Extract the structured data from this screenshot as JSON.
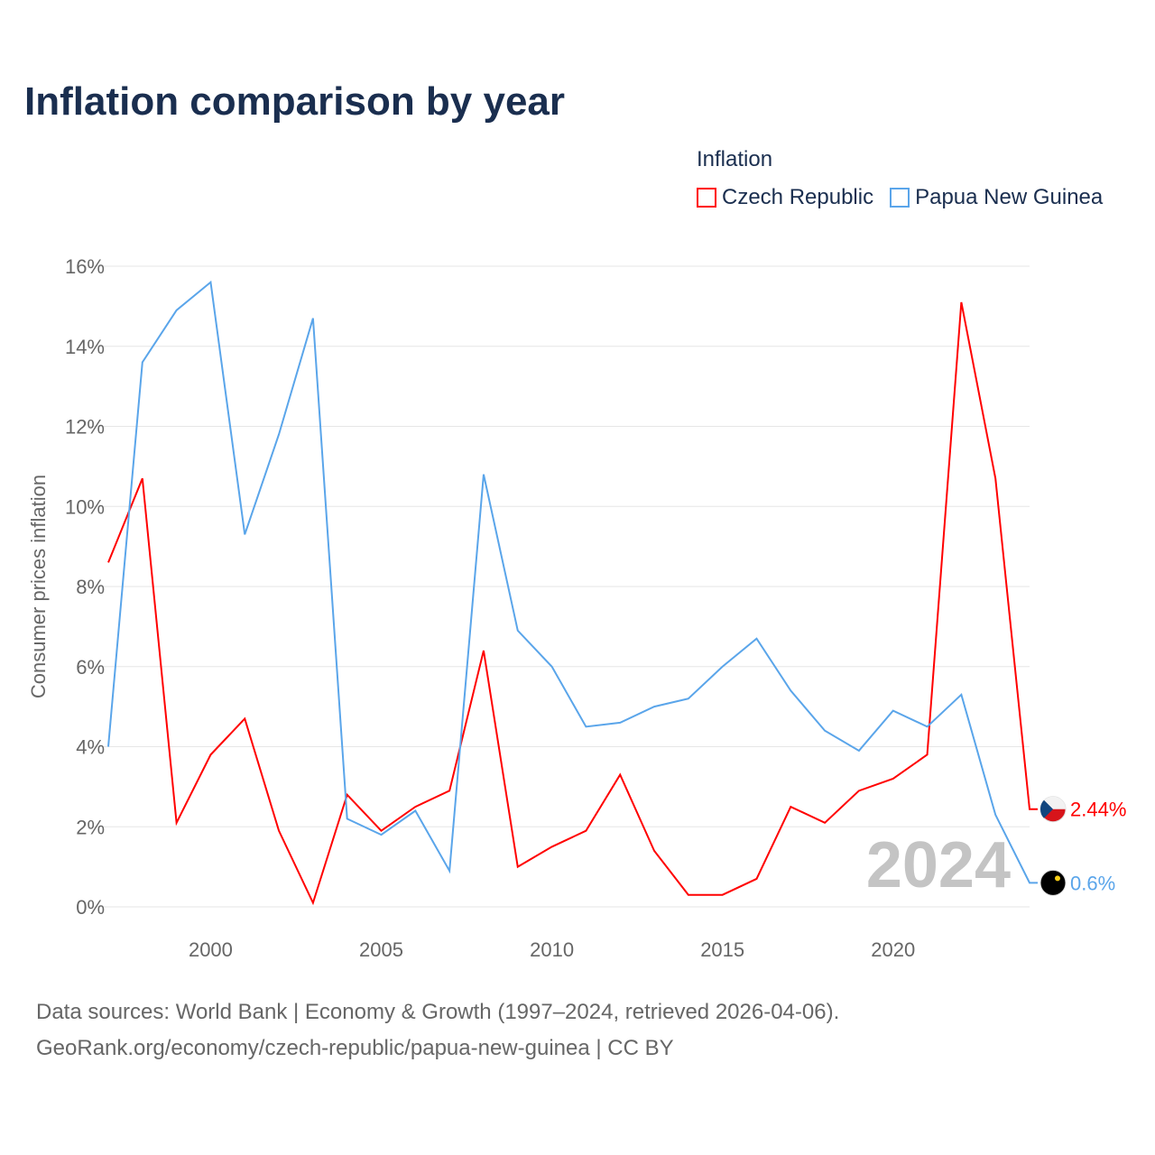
{
  "chart_data": {
    "type": "line",
    "title": "Inflation comparison by year",
    "ylabel": "Consumer prices inflation",
    "xlabel": "",
    "legend_title": "Inflation",
    "legend_position": "top-right",
    "ylim": [
      0,
      16
    ],
    "xlim": [
      1997,
      2024
    ],
    "y_ticks": [
      0,
      2,
      4,
      6,
      8,
      10,
      12,
      14,
      16
    ],
    "y_tick_labels": [
      "0%",
      "2%",
      "4%",
      "6%",
      "8%",
      "10%",
      "12%",
      "14%",
      "16%"
    ],
    "x_ticks": [
      2000,
      2005,
      2010,
      2015,
      2020
    ],
    "x_tick_labels": [
      "2000",
      "2005",
      "2010",
      "2015",
      "2020"
    ],
    "grid": true,
    "year_watermark": "2024",
    "x": [
      1997,
      1998,
      1999,
      2000,
      2001,
      2002,
      2003,
      2004,
      2005,
      2006,
      2007,
      2008,
      2009,
      2010,
      2011,
      2012,
      2013,
      2014,
      2015,
      2016,
      2017,
      2018,
      2019,
      2020,
      2021,
      2022,
      2023,
      2024
    ],
    "series": [
      {
        "name": "Czech Republic",
        "color": "#ff0000",
        "end_label": "2.44%",
        "values": [
          8.6,
          10.7,
          2.1,
          3.8,
          4.7,
          1.9,
          0.1,
          2.8,
          1.9,
          2.5,
          2.9,
          6.4,
          1.0,
          1.5,
          1.9,
          3.3,
          1.4,
          0.3,
          0.3,
          0.7,
          2.5,
          2.1,
          2.9,
          3.2,
          3.8,
          15.1,
          10.7,
          2.44
        ]
      },
      {
        "name": "Papua New Guinea",
        "color": "#5aa5ea",
        "end_label": "0.6%",
        "values": [
          4.0,
          13.6,
          14.9,
          15.6,
          9.3,
          11.8,
          14.7,
          2.2,
          1.8,
          2.4,
          0.9,
          10.8,
          6.9,
          6.0,
          4.5,
          4.6,
          5.0,
          5.2,
          6.0,
          6.7,
          5.4,
          4.4,
          3.9,
          4.9,
          4.5,
          5.3,
          2.3,
          0.6
        ]
      }
    ]
  },
  "footer": {
    "line1": "Data sources: World Bank | Economy & Growth (1997–2024, retrieved 2026-04-06).",
    "line2": "GeoRank.org/economy/czech-republic/papua-new-guinea | CC BY"
  }
}
